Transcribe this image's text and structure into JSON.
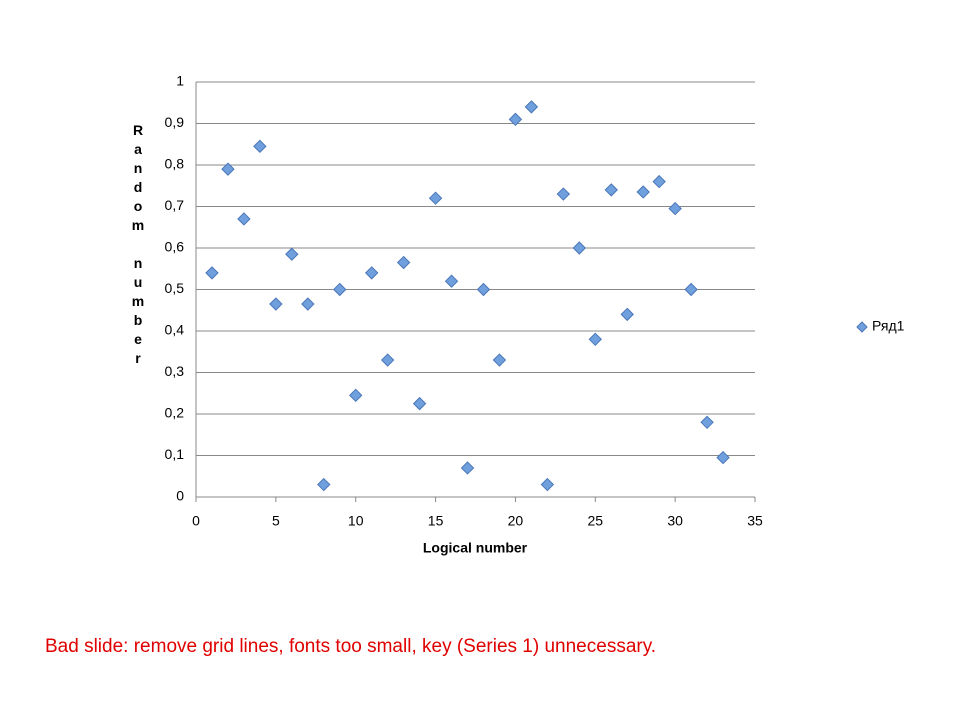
{
  "chart_data": {
    "type": "scatter",
    "x_label": "Logical number",
    "y_label": "Random number",
    "x": [
      1,
      2,
      3,
      4,
      5,
      6,
      7,
      8,
      9,
      10,
      11,
      12,
      13,
      14,
      15,
      16,
      17,
      18,
      19,
      20,
      21,
      22,
      23,
      24,
      25,
      26,
      27,
      28,
      29,
      30,
      31,
      32,
      33
    ],
    "series": [
      {
        "name": "Ряд1",
        "color": "#6f9fdc",
        "values": [
          0.54,
          0.79,
          0.67,
          0.845,
          0.465,
          0.585,
          0.465,
          0.03,
          0.5,
          0.245,
          0.54,
          0.33,
          0.565,
          0.225,
          0.72,
          0.52,
          0.07,
          0.5,
          0.33,
          0.91,
          0.94,
          0.03,
          0.73,
          0.6,
          0.38,
          0.74,
          0.44,
          0.735,
          0.76,
          0.695,
          0.5,
          0.18,
          0.095
        ]
      }
    ],
    "xlim": [
      0,
      35
    ],
    "xticks": [
      0,
      5,
      10,
      15,
      20,
      25,
      30,
      35
    ],
    "ylim": [
      0,
      1
    ],
    "yticks": [
      0,
      {
        "value": 0.1,
        "label": "0,1"
      },
      {
        "value": 0.2,
        "label": "0,2"
      },
      {
        "value": 0.3,
        "label": "0,3"
      },
      {
        "value": 0.4,
        "label": "0,4"
      },
      {
        "value": 0.5,
        "label": "0,5"
      },
      {
        "value": 0.6,
        "label": "0,6"
      },
      {
        "value": 0.7,
        "label": "0,7"
      },
      {
        "value": 0.8,
        "label": "0,8"
      },
      {
        "value": 0.9,
        "label": "0,9"
      },
      1
    ],
    "grid": true,
    "legend": "right"
  },
  "caption": "Bad slide: remove grid lines, fonts too small, key (Series 1) unnecessary."
}
